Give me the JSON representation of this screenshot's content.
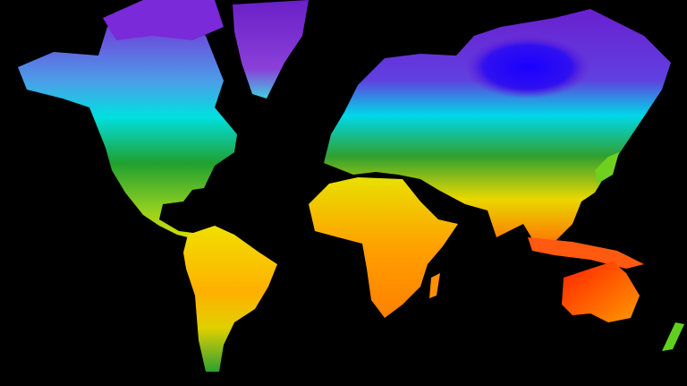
{
  "map": {
    "background_color": "#000000",
    "palette": {
      "coldest": "#2a00ff",
      "cold": "#8a2be2",
      "cool": "#00e5ff",
      "mild": "#1fa81f",
      "warm": "#f0f000",
      "hot": "#ff8c00",
      "hottest": "#ff2000"
    }
  }
}
